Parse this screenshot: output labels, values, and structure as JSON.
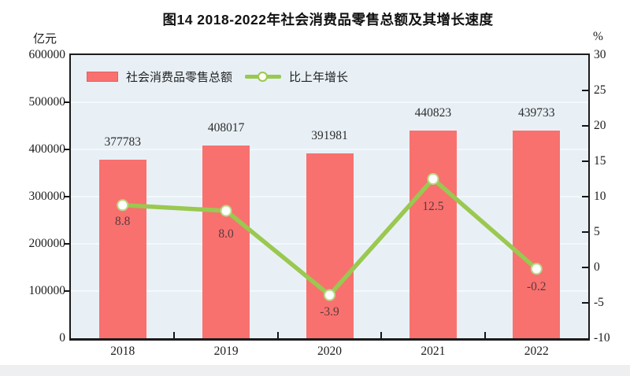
{
  "chart_data": {
    "type": "combo",
    "title": "图14  2018-2022年社会消费品零售总额及其增长速度",
    "categories": [
      "2018",
      "2019",
      "2020",
      "2021",
      "2022"
    ],
    "series": [
      {
        "name": "社会消费品零售总额",
        "type": "bar",
        "axis": "left",
        "color": "#f8716f",
        "values": [
          377783,
          408017,
          391981,
          440823,
          439733
        ],
        "value_labels": [
          "377783",
          "408017",
          "391981",
          "440823",
          "439733"
        ]
      },
      {
        "name": "比上年增长",
        "type": "line",
        "axis": "right",
        "color": "#9ac850",
        "marker": "white-circle",
        "marker_ring_color": "#b7da86",
        "values": [
          8.8,
          8.0,
          -3.9,
          12.5,
          -0.2
        ],
        "value_labels": [
          "8.8",
          "8.0",
          "-3.9",
          "12.5",
          "-0.2"
        ],
        "label_dy": [
          12,
          21,
          13,
          26,
          14
        ]
      }
    ],
    "left_axis": {
      "label": "亿元",
      "min": 0,
      "max": 600000,
      "step": 100000,
      "tick_labels": [
        "600000",
        "500000",
        "400000",
        "300000",
        "200000",
        "100000",
        "0"
      ]
    },
    "right_axis": {
      "label": "%",
      "min": -10,
      "max": 30,
      "step": 5,
      "tick_labels": [
        "30",
        "25",
        "20",
        "15",
        "10",
        "5",
        "0",
        "-5",
        "-10"
      ]
    },
    "grid": true,
    "legend_position": "top-left-inside",
    "plot_background": "#e8f0f6"
  }
}
